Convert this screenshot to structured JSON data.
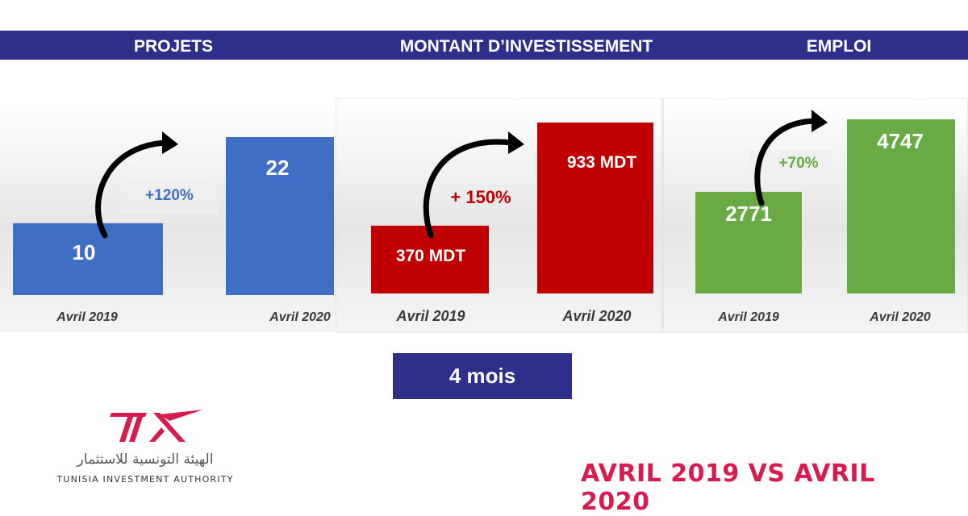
{
  "headers": {
    "projets": "PROJETS",
    "montant": "MONTANT D’INVESTISSEMENT",
    "emploi": "EMPLOI"
  },
  "subtitle": "4 mois",
  "footer_title": "AVRIL 2019 VS AVRIL 2020",
  "logo": {
    "mark": "TIA",
    "arabic": "الهيئة التونسية للاستثمار",
    "english": "TUNISIA INVESTMENT AUTHORITY"
  },
  "colors": {
    "header_band": "#2e2f8a",
    "projets_bar": "#3f6fc5",
    "montant_bar": "#c00000",
    "emploi_bar": "#6aaa45",
    "footer_text": "#d61c4e"
  },
  "chart_data": [
    {
      "type": "bar",
      "title": "PROJETS",
      "categories": [
        "Avril 2019",
        "Avril 2020"
      ],
      "values": [
        10,
        22
      ],
      "labels": [
        "10",
        "22"
      ],
      "change": "+120%",
      "change_color": "#3f6fc5",
      "bar_color": "#3f6fc5"
    },
    {
      "type": "bar",
      "title": "MONTANT D’INVESTISSEMENT",
      "categories": [
        "Avril 2019",
        "Avril 2020"
      ],
      "values": [
        370,
        933
      ],
      "labels": [
        "370 MDT",
        "933 MDT"
      ],
      "change": "+ 150%",
      "change_color": "#c00000",
      "bar_color": "#c00000"
    },
    {
      "type": "bar",
      "title": "EMPLOI",
      "categories": [
        "Avril 2019",
        "Avril 2020"
      ],
      "values": [
        2771,
        4747
      ],
      "labels": [
        "2771",
        "4747"
      ],
      "change": "+70%",
      "change_color": "#6aaa45",
      "bar_color": "#6aaa45"
    }
  ]
}
